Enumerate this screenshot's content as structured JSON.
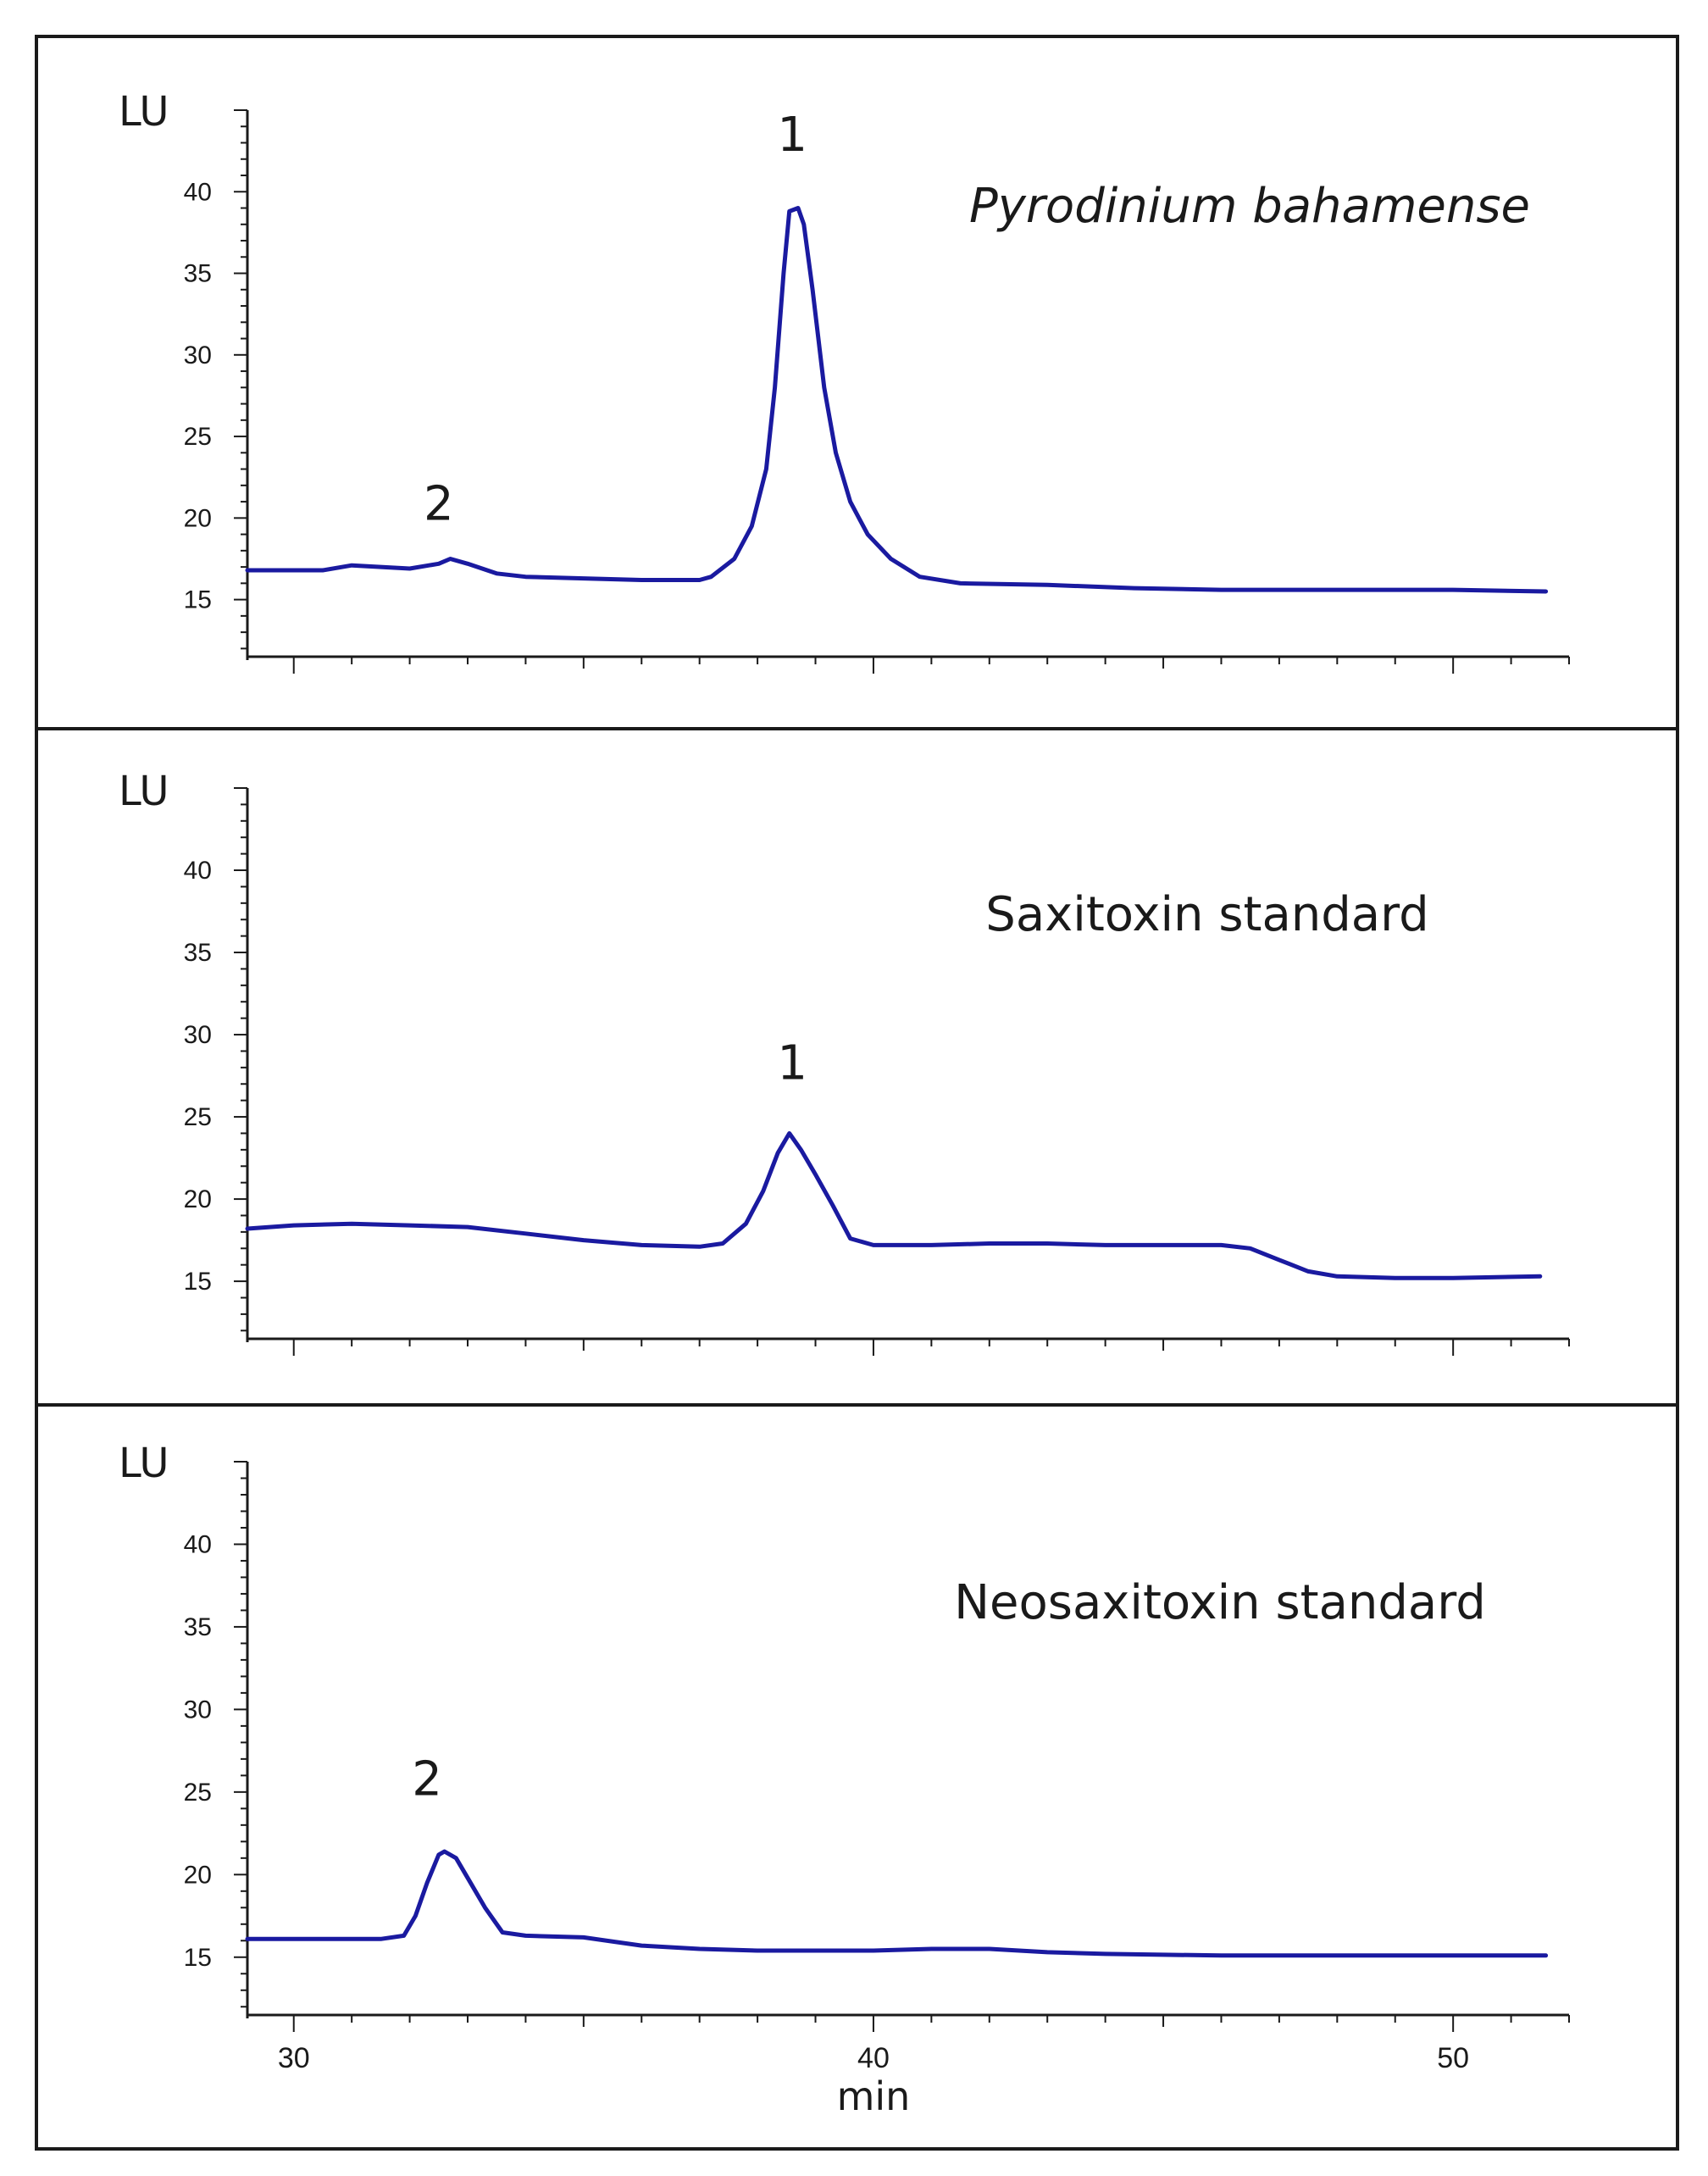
{
  "chart_data": [
    {
      "type": "line",
      "title": "Pyrodinium bahamense",
      "title_style": "italic",
      "ylabel": "LU",
      "xlabel": "",
      "xlim": [
        29.2,
        52
      ],
      "ylim": [
        11.5,
        45
      ],
      "yticks": [
        "15",
        "20",
        "25",
        "30",
        "35",
        "40"
      ],
      "xticks": [],
      "series": [
        {
          "name": "Pyrodinium bahamense",
          "color": "#1a1aa0",
          "points": [
            [
              29.2,
              16.8
            ],
            [
              30.5,
              16.8
            ],
            [
              31.0,
              17.1
            ],
            [
              31.5,
              17.0
            ],
            [
              32.0,
              16.9
            ],
            [
              32.5,
              17.2
            ],
            [
              32.7,
              17.5
            ],
            [
              33.0,
              17.2
            ],
            [
              33.5,
              16.6
            ],
            [
              34.0,
              16.4
            ],
            [
              35.0,
              16.3
            ],
            [
              36.0,
              16.2
            ],
            [
              37.0,
              16.2
            ],
            [
              37.2,
              16.4
            ],
            [
              37.6,
              17.5
            ],
            [
              37.9,
              19.5
            ],
            [
              38.15,
              23.0
            ],
            [
              38.3,
              28.0
            ],
            [
              38.45,
              35.0
            ],
            [
              38.55,
              38.8
            ],
            [
              38.7,
              39.0
            ],
            [
              38.8,
              38.0
            ],
            [
              38.95,
              34.0
            ],
            [
              39.15,
              28.0
            ],
            [
              39.35,
              24.0
            ],
            [
              39.6,
              21.0
            ],
            [
              39.9,
              19.0
            ],
            [
              40.3,
              17.5
            ],
            [
              40.8,
              16.4
            ],
            [
              41.5,
              16.0
            ],
            [
              43.0,
              15.9
            ],
            [
              44.5,
              15.7
            ],
            [
              46.0,
              15.6
            ],
            [
              48.0,
              15.6
            ],
            [
              50.0,
              15.6
            ],
            [
              51.6,
              15.5
            ]
          ]
        }
      ],
      "annotations": [
        {
          "text": "1",
          "x": 38.6,
          "y": 42.5
        },
        {
          "text": "2",
          "x": 32.5,
          "y": 19.9
        }
      ]
    },
    {
      "type": "line",
      "title": "Saxitoxin standard",
      "title_style": "normal",
      "ylabel": "LU",
      "xlabel": "",
      "xlim": [
        29.2,
        52
      ],
      "ylim": [
        11.5,
        45
      ],
      "yticks": [
        "15",
        "20",
        "25",
        "30",
        "35",
        "40"
      ],
      "xticks": [],
      "series": [
        {
          "name": "Saxitoxin standard",
          "color": "#1a1aa0",
          "points": [
            [
              29.2,
              18.2
            ],
            [
              30.0,
              18.4
            ],
            [
              31.0,
              18.5
            ],
            [
              32.0,
              18.4
            ],
            [
              33.0,
              18.3
            ],
            [
              34.0,
              17.9
            ],
            [
              35.0,
              17.5
            ],
            [
              36.0,
              17.2
            ],
            [
              37.0,
              17.1
            ],
            [
              37.4,
              17.3
            ],
            [
              37.8,
              18.5
            ],
            [
              38.1,
              20.5
            ],
            [
              38.35,
              22.8
            ],
            [
              38.55,
              24.0
            ],
            [
              38.75,
              23.0
            ],
            [
              39.0,
              21.5
            ],
            [
              39.3,
              19.6
            ],
            [
              39.6,
              17.6
            ],
            [
              40.0,
              17.2
            ],
            [
              41.0,
              17.2
            ],
            [
              42.0,
              17.3
            ],
            [
              43.0,
              17.3
            ],
            [
              44.0,
              17.2
            ],
            [
              45.0,
              17.2
            ],
            [
              46.0,
              17.2
            ],
            [
              46.5,
              17.0
            ],
            [
              47.0,
              16.3
            ],
            [
              47.5,
              15.6
            ],
            [
              48.0,
              15.3
            ],
            [
              49.0,
              15.2
            ],
            [
              50.0,
              15.2
            ],
            [
              51.5,
              15.3
            ]
          ]
        }
      ],
      "annotations": [
        {
          "text": "1",
          "x": 38.6,
          "y": 27.3
        }
      ]
    },
    {
      "type": "line",
      "title": "Neosaxitoxin standard",
      "title_style": "normal",
      "ylabel": "LU",
      "xlabel": "min",
      "xlim": [
        29.2,
        52
      ],
      "ylim": [
        11.5,
        45
      ],
      "yticks": [
        "15",
        "20",
        "25",
        "30",
        "35",
        "40"
      ],
      "xticks": [
        "30",
        "40",
        "50"
      ],
      "series": [
        {
          "name": "Neosaxitoxin standard",
          "color": "#1a1aa0",
          "points": [
            [
              29.2,
              16.1
            ],
            [
              30.5,
              16.1
            ],
            [
              31.5,
              16.1
            ],
            [
              31.9,
              16.3
            ],
            [
              32.1,
              17.5
            ],
            [
              32.3,
              19.5
            ],
            [
              32.5,
              21.2
            ],
            [
              32.6,
              21.4
            ],
            [
              32.8,
              21.0
            ],
            [
              33.0,
              19.8
            ],
            [
              33.3,
              18.0
            ],
            [
              33.6,
              16.5
            ],
            [
              34.0,
              16.3
            ],
            [
              35.0,
              16.2
            ],
            [
              36.0,
              15.7
            ],
            [
              37.0,
              15.5
            ],
            [
              38.0,
              15.4
            ],
            [
              40.0,
              15.4
            ],
            [
              41.0,
              15.5
            ],
            [
              42.0,
              15.5
            ],
            [
              43.0,
              15.3
            ],
            [
              44.0,
              15.2
            ],
            [
              46.0,
              15.1
            ],
            [
              48.0,
              15.1
            ],
            [
              50.0,
              15.1
            ],
            [
              51.6,
              15.1
            ]
          ]
        }
      ],
      "annotations": [
        {
          "text": "2",
          "x": 32.3,
          "y": 24.8
        }
      ]
    }
  ]
}
